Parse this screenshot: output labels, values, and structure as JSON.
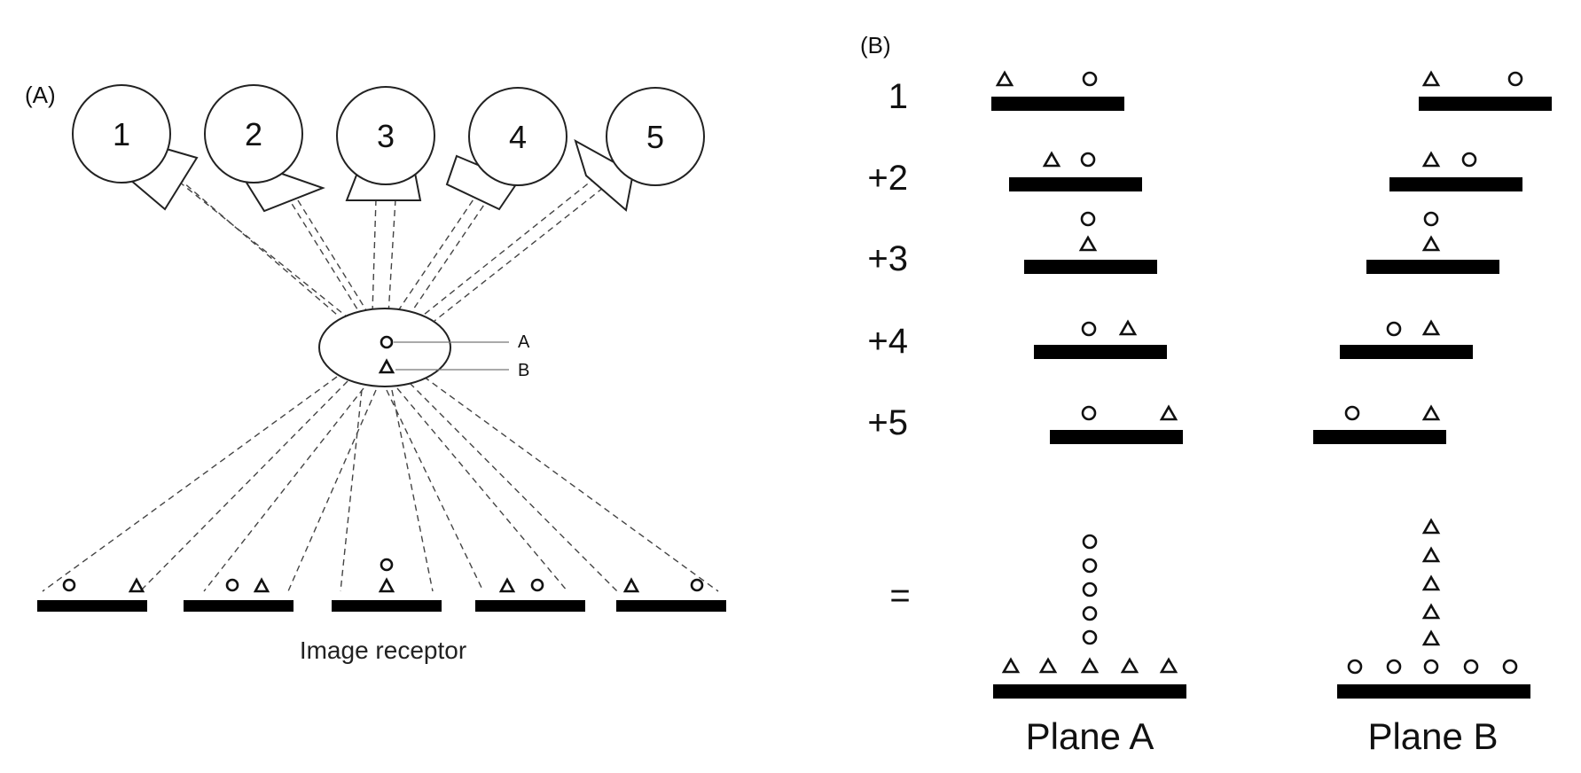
{
  "panel_a": {
    "label": "(A)",
    "tubes": [
      "1",
      "2",
      "3",
      "4",
      "5"
    ],
    "object_labels": {
      "a": "A",
      "b": "B"
    },
    "receptor_label": "Image receptor"
  },
  "panel_b": {
    "label": "(B)",
    "rows": [
      "1",
      "+2",
      "+3",
      "+4",
      "+5"
    ],
    "equals": "=",
    "plane_a": "Plane A",
    "plane_b": "Plane B"
  },
  "colors": {
    "ink": "#000000",
    "ray": "#444444",
    "leader": "#777777"
  }
}
